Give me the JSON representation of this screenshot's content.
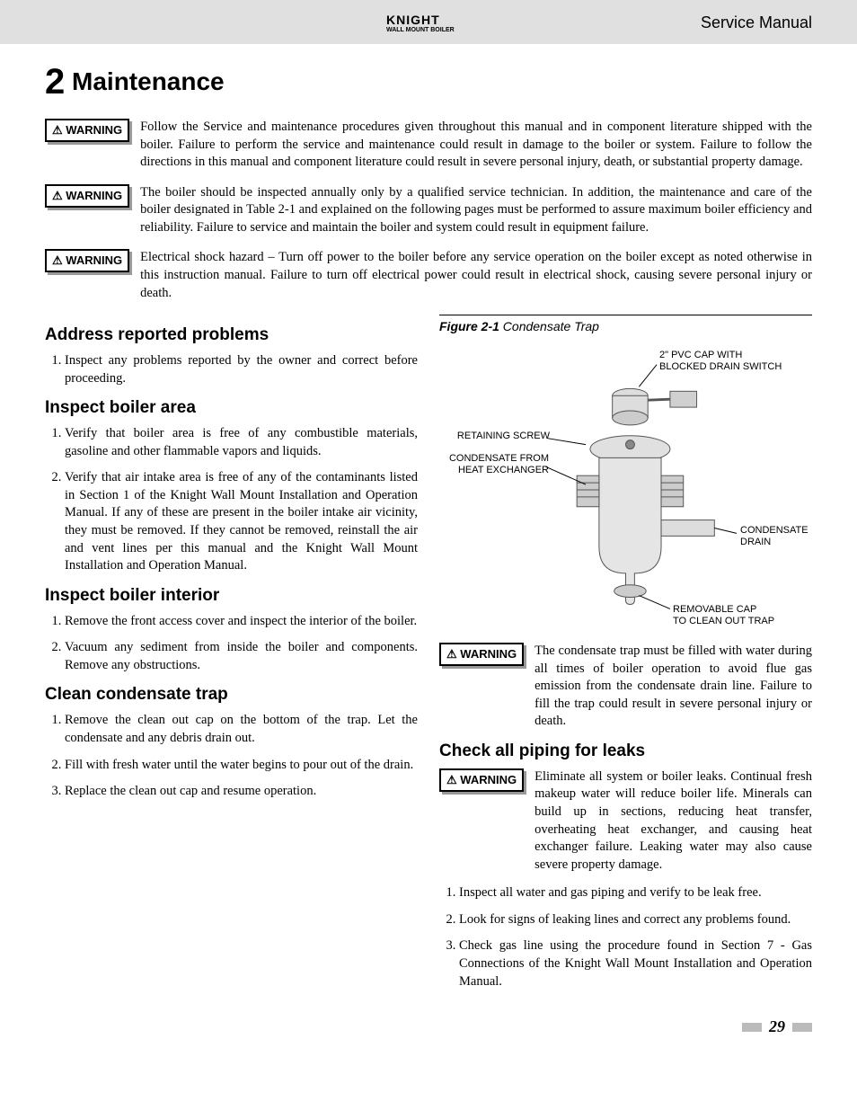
{
  "header": {
    "logo_main": "KNIGHT",
    "logo_sub": "WALL MOUNT BOILER",
    "title": "Service Manual"
  },
  "section": {
    "number": "2",
    "title": "Maintenance"
  },
  "warnings_top": [
    "Follow the Service and maintenance procedures given throughout this manual and in component literature shipped with the boiler.  Failure to perform the service and maintenance could result in damage to the boiler or system.  Failure to follow the directions in this manual and component literature could result in severe personal injury, death, or substantial property damage.",
    "The boiler should be inspected annually only by a qualified service technician.  In addition, the maintenance and care of the boiler designated in Table 2-1 and explained on the following pages must be performed to assure maximum boiler efficiency and reliability.  Failure to service and maintain the boiler and system could result in equipment failure.",
    "Electrical shock hazard – Turn off power to the boiler before any service operation on the boiler except as noted otherwise in this instruction manual.  Failure to turn off electrical power could result in electrical shock, causing severe personal injury or death."
  ],
  "warning_label": "⚠ WARNING",
  "left_col": {
    "s1": {
      "head": "Address reported problems",
      "items": [
        "Inspect any problems reported by the owner and correct before proceeding."
      ]
    },
    "s2": {
      "head": "Inspect boiler area",
      "items": [
        "Verify that boiler area is free of any combustible materials, gasoline and other flammable vapors and liquids.",
        "Verify that air intake area is free of any of the contaminants listed in Section 1 of the Knight Wall Mount Installation and Operation Manual.  If any of these are present in the boiler intake air vicinity, they must be removed.  If they cannot be removed, reinstall the air and vent lines per this manual and the Knight Wall Mount Installation and Operation Manual."
      ]
    },
    "s3": {
      "head": "Inspect boiler interior",
      "items": [
        "Remove the front access cover and inspect the interior of the boiler.",
        "Vacuum any sediment from inside the boiler and components.  Remove any obstructions."
      ]
    },
    "s4": {
      "head": "Clean condensate trap",
      "items": [
        "Remove the clean out cap on the bottom of the trap.  Let the condensate and any debris drain out.",
        "Fill with fresh water until the water begins to pour out of the drain.",
        "Replace the clean out cap and resume operation."
      ]
    }
  },
  "right_col": {
    "figure": {
      "label_bold": "Figure 2-1",
      "label_italic": "Condensate Trap",
      "labels": {
        "l1": "2\" PVC CAP WITH\nBLOCKED DRAIN SWITCH",
        "l2": "RETAINING SCREW",
        "l3": "CONDENSATE FROM\nHEAT EXCHANGER",
        "l4": "CONDENSATE\nDRAIN",
        "l5": "REMOVABLE CAP\nTO CLEAN OUT TRAP"
      }
    },
    "warn1": "The condensate trap must be filled with water during all times of boiler operation to avoid flue gas emission from the condensate drain line.  Failure to fill the trap could result in severe personal injury or death.",
    "s5": {
      "head": "Check all piping for leaks",
      "warn": "Eliminate all system or boiler leaks.  Continual fresh makeup water will reduce boiler life.  Minerals can build up in sections, reducing heat transfer, overheating heat exchanger, and causing heat exchanger failure.  Leaking water may also cause severe property damage.",
      "items": [
        "Inspect all water and gas piping and verify to be leak free.",
        "Look for signs of leaking lines and correct any problems found.",
        "Check gas line using the procedure found in Section 7 -  Gas Connections of the Knight Wall Mount Installation and Operation Manual."
      ]
    }
  },
  "page_number": "29",
  "colors": {
    "header_bg": "#e0e0e0",
    "footer_bar": "#bbbbbb"
  }
}
